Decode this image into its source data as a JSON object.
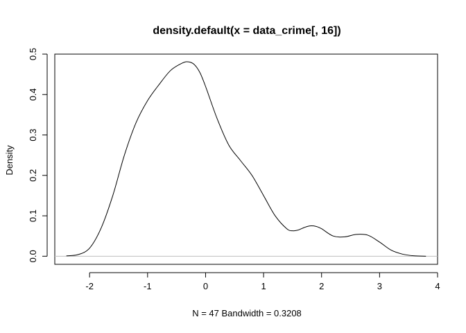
{
  "chart_data": {
    "type": "line",
    "title": "density.default(x = data_crime[, 16])",
    "xlabel": "N = 47   Bandwidth = 0.3208",
    "ylabel": "Density",
    "xlim": [
      -2.6,
      4.0
    ],
    "ylim": [
      -0.02,
      0.5
    ],
    "x_ticks": [
      -2,
      -1,
      0,
      1,
      2,
      3,
      4
    ],
    "y_ticks": [
      0.0,
      0.1,
      0.2,
      0.3,
      0.4,
      0.5
    ],
    "x_tick_labels": [
      "-2",
      "-1",
      "0",
      "1",
      "2",
      "3",
      "4"
    ],
    "y_tick_labels": [
      "0.0",
      "0.1",
      "0.2",
      "0.3",
      "0.4",
      "0.5"
    ],
    "baseline": 0,
    "grid": false,
    "series": [
      {
        "color": "#000000",
        "x": [
          -2.4,
          -2.2,
          -2.0,
          -1.8,
          -1.6,
          -1.4,
          -1.2,
          -1.0,
          -0.8,
          -0.6,
          -0.4,
          -0.3,
          -0.2,
          -0.1,
          0.0,
          0.2,
          0.4,
          0.6,
          0.8,
          1.0,
          1.2,
          1.4,
          1.5,
          1.6,
          1.7,
          1.8,
          1.9,
          2.0,
          2.2,
          2.4,
          2.6,
          2.8,
          3.0,
          3.2,
          3.4,
          3.6,
          3.8
        ],
        "y": [
          0.001,
          0.004,
          0.02,
          0.07,
          0.15,
          0.25,
          0.33,
          0.385,
          0.425,
          0.46,
          0.478,
          0.481,
          0.475,
          0.455,
          0.42,
          0.34,
          0.275,
          0.237,
          0.2,
          0.15,
          0.1,
          0.068,
          0.063,
          0.065,
          0.071,
          0.075,
          0.074,
          0.068,
          0.05,
          0.048,
          0.054,
          0.052,
          0.035,
          0.015,
          0.005,
          0.001,
          0.0
        ]
      }
    ]
  }
}
